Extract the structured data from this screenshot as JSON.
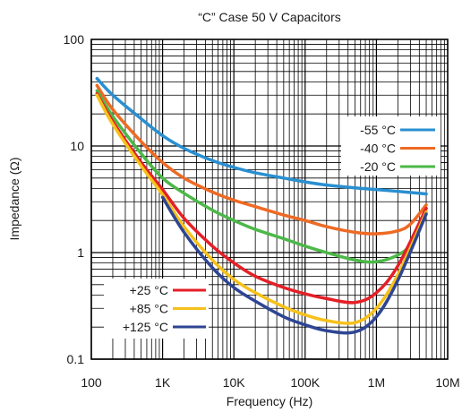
{
  "chart_data": {
    "type": "line",
    "title": "“C” Case 50 V Capacitors",
    "xlabel": "Frequency (Hz)",
    "ylabel": "Impedance (Ω)",
    "x_scale": "log",
    "y_scale": "log",
    "xlim": [
      100,
      10000000
    ],
    "ylim": [
      0.1,
      100
    ],
    "x_ticks": [
      {
        "value": 100,
        "label": "100"
      },
      {
        "value": 1000,
        "label": "1K"
      },
      {
        "value": 10000,
        "label": "10K"
      },
      {
        "value": 100000,
        "label": "100K"
      },
      {
        "value": 1000000,
        "label": "1M"
      },
      {
        "value": 10000000,
        "label": "10M"
      }
    ],
    "y_ticks": [
      {
        "value": 0.1,
        "label": "0.1"
      },
      {
        "value": 1,
        "label": "1"
      },
      {
        "value": 10,
        "label": "10"
      },
      {
        "value": 100,
        "label": "100"
      }
    ],
    "grid": true,
    "legends": [
      {
        "position": "upper-right",
        "series": [
          "-55 °C",
          "-40 °C",
          "-20 °C"
        ]
      },
      {
        "position": "lower-left",
        "series": [
          "+25 °C",
          "+85 °C",
          "+125 °C"
        ]
      }
    ],
    "series": [
      {
        "name": "-55 °C",
        "color": "#2a8fd0",
        "x": [
          120,
          200,
          500,
          1000,
          2000,
          5000,
          10000,
          20000,
          50000,
          100000,
          200000,
          500000,
          1000000,
          2000000,
          5000000
        ],
        "y": [
          43,
          30,
          18,
          12.5,
          9.5,
          7.3,
          6.3,
          5.6,
          5.0,
          4.6,
          4.3,
          4.05,
          3.9,
          3.75,
          3.55
        ]
      },
      {
        "name": "-40 °C",
        "color": "#ee6a24",
        "x": [
          120,
          200,
          500,
          1000,
          2000,
          5000,
          10000,
          20000,
          50000,
          100000,
          200000,
          500000,
          1000000,
          2000000,
          3000000,
          5000000
        ],
        "y": [
          37,
          22,
          11,
          7.0,
          5.0,
          3.7,
          3.1,
          2.7,
          2.25,
          2.0,
          1.75,
          1.55,
          1.5,
          1.6,
          1.85,
          2.8
        ]
      },
      {
        "name": "-20 °C",
        "color": "#4cb848",
        "x": [
          120,
          200,
          500,
          1000,
          2000,
          5000,
          10000,
          20000,
          50000,
          100000,
          200000,
          500000,
          1000000,
          2000000,
          3000000,
          5000000
        ],
        "y": [
          33,
          19,
          8.5,
          5.0,
          3.6,
          2.5,
          2.0,
          1.65,
          1.35,
          1.15,
          1.0,
          0.85,
          0.82,
          0.95,
          1.2,
          2.4
        ]
      },
      {
        "name": "+25 °C",
        "color": "#e51f27",
        "x": [
          120,
          200,
          500,
          1000,
          2000,
          5000,
          10000,
          20000,
          50000,
          100000,
          200000,
          500000,
          1000000,
          2000000,
          5000000
        ],
        "y": [
          31,
          17,
          7.0,
          3.9,
          2.1,
          1.15,
          0.8,
          0.6,
          0.47,
          0.41,
          0.37,
          0.34,
          0.42,
          0.75,
          2.6
        ]
      },
      {
        "name": "+85 °C",
        "color": "#f6c11b",
        "x": [
          120,
          200,
          500,
          1000,
          2000,
          5000,
          10000,
          20000,
          50000,
          100000,
          200000,
          500000,
          1000000,
          2000000,
          5000000
        ],
        "y": [
          30,
          16,
          6.5,
          3.5,
          1.75,
          0.85,
          0.56,
          0.42,
          0.31,
          0.26,
          0.23,
          0.22,
          0.3,
          0.62,
          2.4
        ]
      },
      {
        "name": "+125 °C",
        "color": "#2e4593",
        "x": [
          1000,
          2000,
          5000,
          10000,
          20000,
          50000,
          100000,
          200000,
          500000,
          1000000,
          2000000,
          5000000
        ],
        "y": [
          3.3,
          1.55,
          0.72,
          0.47,
          0.35,
          0.25,
          0.21,
          0.185,
          0.18,
          0.25,
          0.55,
          2.3
        ]
      }
    ]
  }
}
